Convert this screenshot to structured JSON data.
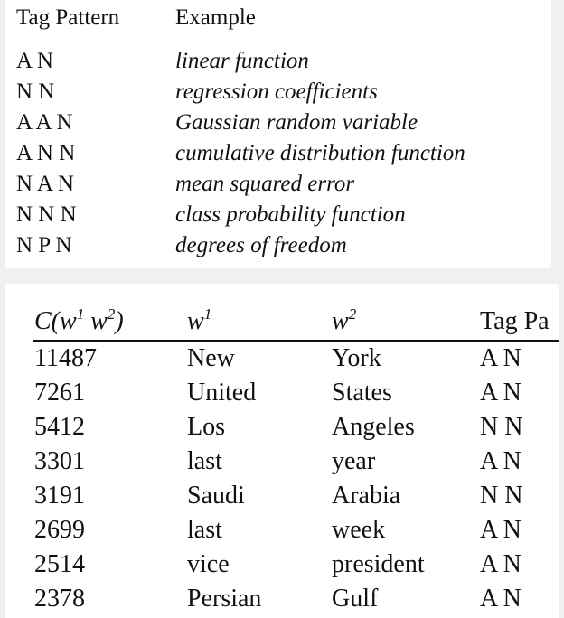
{
  "pattern_table": {
    "headers": {
      "tag_pattern": "Tag Pattern",
      "example": "Example"
    },
    "rows": [
      {
        "pattern": "A N",
        "example": "linear function"
      },
      {
        "pattern": "N N",
        "example": "regression coefficients"
      },
      {
        "pattern": "A A N",
        "example": "Gaussian random variable"
      },
      {
        "pattern": "A N N",
        "example": "cumulative distribution function"
      },
      {
        "pattern": "N A N",
        "example": "mean squared error"
      },
      {
        "pattern": "N N N",
        "example": "class probability function"
      },
      {
        "pattern": "N P N",
        "example": "degrees of freedom"
      }
    ]
  },
  "bigram_table": {
    "headers": {
      "count_prefix": "C(",
      "count_w": "w",
      "count_sup1": "1",
      "count_w2": "w",
      "count_sup2": "2",
      "count_suffix": ")",
      "w1_base": "w",
      "w1_sup": "1",
      "w2_base": "w",
      "w2_sup": "2",
      "tag_pattern": "Tag Pa"
    },
    "rows": [
      {
        "count": "11487",
        "w1": "New",
        "w2": "York",
        "tag": "A N"
      },
      {
        "count": "7261",
        "w1": "United",
        "w2": "States",
        "tag": "A N"
      },
      {
        "count": "5412",
        "w1": "Los",
        "w2": "Angeles",
        "tag": "N N"
      },
      {
        "count": "3301",
        "w1": "last",
        "w2": "year",
        "tag": "A N"
      },
      {
        "count": "3191",
        "w1": "Saudi",
        "w2": "Arabia",
        "tag": "N N"
      },
      {
        "count": "2699",
        "w1": "last",
        "w2": "week",
        "tag": "A N"
      },
      {
        "count": "2514",
        "w1": "vice",
        "w2": "president",
        "tag": "A N"
      },
      {
        "count": "2378",
        "w1": "Persian",
        "w2": "Gulf",
        "tag": "A N"
      }
    ]
  }
}
